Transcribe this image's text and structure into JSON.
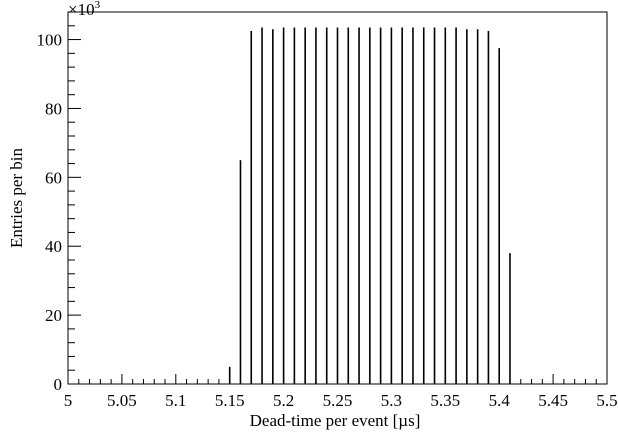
{
  "chart_data": {
    "type": "bar",
    "xlabel": "Dead-time per event [µs]",
    "ylabel": "Entries per bin",
    "multiplier": {
      "base": "×10",
      "exponent": "3"
    },
    "xlim": [
      5.0,
      5.5
    ],
    "ylim": [
      0,
      108
    ],
    "x_ticks": [
      "5",
      "5.05",
      "5.1",
      "5.15",
      "5.2",
      "5.25",
      "5.3",
      "5.35",
      "5.4",
      "5.45",
      "5.5"
    ],
    "y_ticks": [
      "0",
      "20",
      "40",
      "60",
      "80",
      "100"
    ],
    "grid": false,
    "x": [
      5.15,
      5.16,
      5.17,
      5.18,
      5.19,
      5.2,
      5.21,
      5.22,
      5.23,
      5.24,
      5.25,
      5.26,
      5.27,
      5.28,
      5.29,
      5.3,
      5.31,
      5.32,
      5.33,
      5.34,
      5.35,
      5.36,
      5.37,
      5.38,
      5.39,
      5.4,
      5.41
    ],
    "values": [
      5,
      65,
      102.5,
      103.5,
      103,
      103.5,
      103.5,
      103.5,
      103.5,
      103.5,
      103.5,
      103.5,
      103.5,
      103.5,
      103.5,
      103.5,
      103.5,
      103.5,
      103.5,
      103.5,
      103.5,
      103.5,
      103,
      103,
      102.5,
      97.5,
      38
    ]
  }
}
